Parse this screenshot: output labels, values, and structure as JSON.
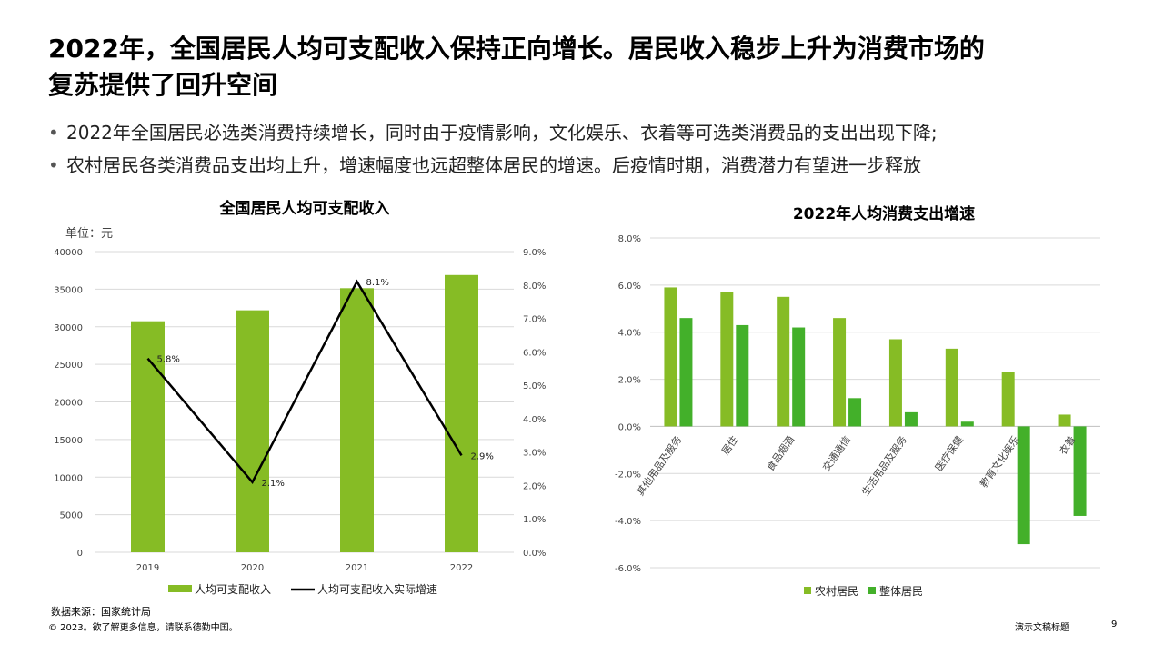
{
  "title_lines": [
    "2022年，全国居民人均可支配收入保持正向增长。居民收入稳步上升为消费市场的",
    "复苏提供了回升空间"
  ],
  "bullets": [
    "2022年全国居民必选类消费持续增长，同时由于疫情影响，文化娱乐、衣着等可选类消费品的支出出现下降;",
    "农村居民各类消费品支出均上升，增速幅度也远超整体居民的增速。后疫情时期，消费潜力有望进一步释放"
  ],
  "chart_data": [
    {
      "type": "bar",
      "title": "全国居民人均可支配收入",
      "unit_label": "单位：元",
      "categories": [
        "2019",
        "2020",
        "2021",
        "2022"
      ],
      "series": [
        {
          "name": "人均可支配收入",
          "type": "bar",
          "axis": "left",
          "color": "#86bc25",
          "values": [
            30733,
            32189,
            35128,
            36883
          ]
        },
        {
          "name": "人均可支配收入实际增速",
          "type": "line",
          "axis": "right",
          "color": "#000000",
          "values": [
            5.8,
            2.1,
            8.1,
            2.9
          ],
          "labels": [
            "5.8%",
            "2.1%",
            "8.1%",
            "2.9%"
          ]
        }
      ],
      "ylim": [
        0,
        40000
      ],
      "y_ticks": [
        "0",
        "5000",
        "10000",
        "15000",
        "20000",
        "25000",
        "30000",
        "35000",
        "40000"
      ],
      "y2lim": [
        0,
        9
      ],
      "y2_ticks": [
        "0.0%",
        "1.0%",
        "2.0%",
        "3.0%",
        "4.0%",
        "5.0%",
        "6.0%",
        "7.0%",
        "8.0%",
        "9.0%"
      ],
      "grid": true,
      "legend": "bottom"
    },
    {
      "type": "bar",
      "title": "2022年人均消费支出增速",
      "categories": [
        "其他用品及服务",
        "居住",
        "食品烟酒",
        "交通通信",
        "生活用品及服务",
        "医疗保健",
        "教育文化娱乐",
        "衣着"
      ],
      "series": [
        {
          "name": "农村居民",
          "color": "#86bc25",
          "values": [
            5.9,
            5.7,
            5.5,
            4.6,
            3.7,
            3.3,
            2.3,
            0.5
          ]
        },
        {
          "name": "整体居民",
          "color": "#43b02a",
          "values": [
            4.6,
            4.3,
            4.2,
            1.2,
            0.6,
            0.2,
            -5.0,
            -3.8
          ]
        }
      ],
      "ylim": [
        -6,
        8
      ],
      "y_ticks": [
        "-6.0%",
        "-4.0%",
        "-2.0%",
        "0.0%",
        "2.0%",
        "4.0%",
        "6.0%",
        "8.0%"
      ],
      "grid": true,
      "legend": "bottom"
    }
  ],
  "footer": {
    "source": "数据来源：国家统计局",
    "copyright": "© 2023。欲了解更多信息，请联系德勤中国。",
    "doc_title": "演示文稿标题",
    "page_number": "9"
  }
}
